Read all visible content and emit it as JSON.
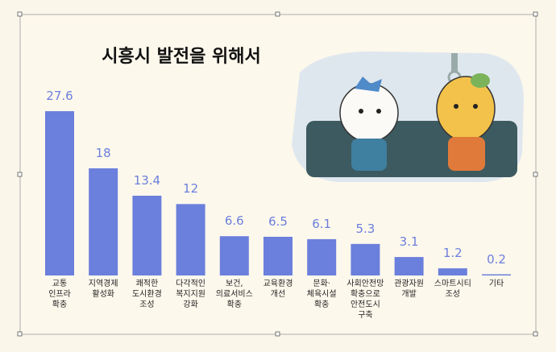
{
  "chart_data": {
    "type": "bar",
    "title": "시흥시 발전을 위해서",
    "categories": [
      "교통\n인프라\n확충",
      "지역경제\n활성화",
      "쾌적한\n도시환경\n조성",
      "다각적인\n복지지원\n강화",
      "보건,\n의료서비스\n확충",
      "교육환경\n개선",
      "문화·\n체육시설\n확충",
      "사회안전망\n확충으로\n안전도시\n구축",
      "관광자원\n개발",
      "스마트시티\n조성",
      "기타"
    ],
    "values": [
      27.6,
      18,
      13.4,
      12,
      6.6,
      6.5,
      6.1,
      5.3,
      3.1,
      1.2,
      0.2
    ],
    "color": "#6b7fdc"
  }
}
